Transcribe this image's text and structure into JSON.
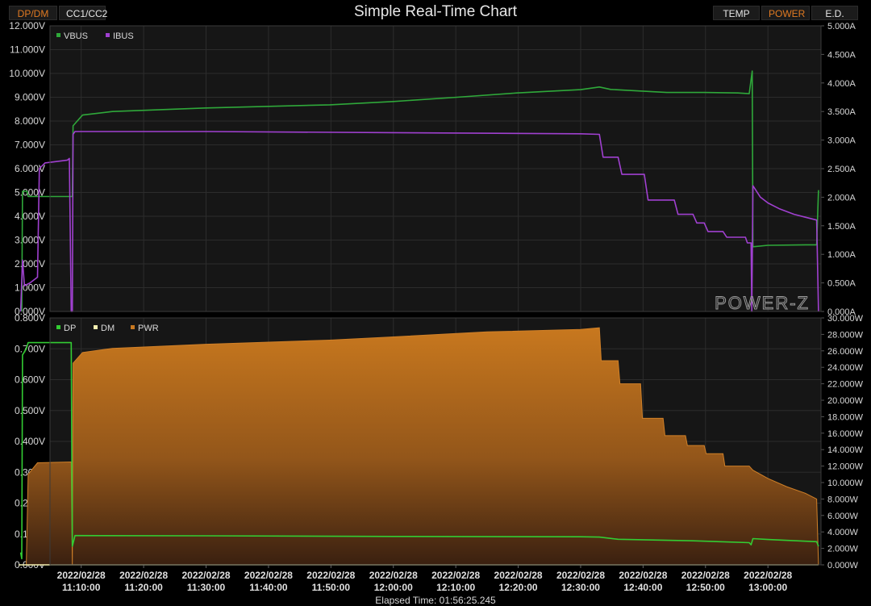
{
  "header": {
    "title": "Simple Real-Time Chart",
    "tabs_left": [
      {
        "label": "DP/DM",
        "active": true
      },
      {
        "label": "CC1/CC2",
        "active": false
      }
    ],
    "tabs_right": [
      {
        "label": "TEMP",
        "active": false
      },
      {
        "label": "POWER",
        "active": true
      },
      {
        "label": "E.D.",
        "active": false
      }
    ],
    "active_color": "#e07a22",
    "inactive_color": "#e6e6e6"
  },
  "watermark": "POWER-Z",
  "elapsed_time": "Elapsed Time: 01:56:25.245",
  "chart_data": [
    {
      "type": "line",
      "panel": "top",
      "x_ticks": [
        "2022/02/28 11:10:00",
        "2022/02/28 11:20:00",
        "2022/02/28 11:30:00",
        "2022/02/28 11:40:00",
        "2022/02/28 11:50:00",
        "2022/02/28 12:00:00",
        "2022/02/28 12:10:00",
        "2022/02/28 12:20:00",
        "2022/02/28 12:30:00",
        "2022/02/28 12:40:00",
        "2022/02/28 12:50:00",
        "2022/02/28 13:00:00"
      ],
      "y_left": {
        "ticks": [
          "12.000V",
          "11.000V",
          "10.000V",
          "9.000V",
          "8.000V",
          "7.000V",
          "6.000V",
          "5.000V",
          "4.000V",
          "3.000V",
          "2.000V",
          "1.000V",
          "0.000V"
        ],
        "range": [
          0,
          12
        ]
      },
      "y_right": {
        "ticks": [
          "5.000A",
          "4.500A",
          "4.000A",
          "3.500A",
          "3.000A",
          "2.500A",
          "2.000A",
          "1.500A",
          "1.000A",
          "0.500A",
          "0.000A"
        ],
        "range": [
          0,
          5
        ]
      },
      "legend": [
        {
          "name": "VBUS",
          "color": "#2fa83a"
        },
        {
          "name": "IBUS",
          "color": "#a040d0"
        }
      ],
      "series": [
        {
          "name": "VBUS",
          "axis": "left",
          "color": "#2fa83a",
          "points": [
            [
              11.008,
              0
            ],
            [
              11.01,
              5.05
            ],
            [
              11.022,
              5.05
            ],
            [
              11.025,
              4.83
            ],
            [
              11.143,
              4.83
            ],
            [
              11.145,
              7.8
            ],
            [
              11.17,
              8.25
            ],
            [
              11.25,
              8.4
            ],
            [
              11.5,
              8.55
            ],
            [
              11.83,
              8.68
            ],
            [
              12.0,
              8.82
            ],
            [
              12.17,
              9.0
            ],
            [
              12.33,
              9.18
            ],
            [
              12.5,
              9.32
            ],
            [
              12.55,
              9.43
            ],
            [
              12.58,
              9.33
            ],
            [
              12.67,
              9.25
            ],
            [
              12.73,
              9.2
            ],
            [
              12.83,
              9.2
            ],
            [
              12.92,
              9.18
            ],
            [
              12.95,
              9.15
            ],
            [
              12.958,
              10.1
            ],
            [
              12.96,
              2.72
            ],
            [
              13.0,
              2.78
            ],
            [
              13.1,
              2.8
            ],
            [
              13.13,
              2.8
            ],
            [
              13.135,
              5.1
            ]
          ]
        },
        {
          "name": "IBUS",
          "axis": "right",
          "color": "#a040d0",
          "points": [
            [
              11.005,
              0
            ],
            [
              11.01,
              0.9
            ],
            [
              11.015,
              0.45
            ],
            [
              11.03,
              0.5
            ],
            [
              11.05,
              0.6
            ],
            [
              11.055,
              2.5
            ],
            [
              11.07,
              2.6
            ],
            [
              11.13,
              2.65
            ],
            [
              11.135,
              2.68
            ],
            [
              11.14,
              0
            ],
            [
              11.143,
              0
            ],
            [
              11.145,
              3.1
            ],
            [
              11.15,
              3.15
            ],
            [
              11.5,
              3.15
            ],
            [
              12.0,
              3.13
            ],
            [
              12.5,
              3.11
            ],
            [
              12.55,
              3.1
            ],
            [
              12.56,
              2.7
            ],
            [
              12.6,
              2.7
            ],
            [
              12.61,
              2.4
            ],
            [
              12.67,
              2.4
            ],
            [
              12.68,
              1.95
            ],
            [
              12.75,
              1.95
            ],
            [
              12.76,
              1.7
            ],
            [
              12.8,
              1.7
            ],
            [
              12.81,
              1.55
            ],
            [
              12.83,
              1.55
            ],
            [
              12.84,
              1.4
            ],
            [
              12.88,
              1.4
            ],
            [
              12.89,
              1.3
            ],
            [
              12.94,
              1.3
            ],
            [
              12.945,
              1.2
            ],
            [
              12.955,
              1.2
            ],
            [
              12.957,
              0
            ],
            [
              12.96,
              2.2
            ],
            [
              12.98,
              2.0
            ],
            [
              13.0,
              1.9
            ],
            [
              13.03,
              1.8
            ],
            [
              13.07,
              1.7
            ],
            [
              13.1,
              1.65
            ],
            [
              13.13,
              1.6
            ],
            [
              13.135,
              0
            ]
          ]
        }
      ]
    },
    {
      "type": "area",
      "panel": "bottom",
      "x_ticks": [
        "2022/02/28 11:10:00",
        "2022/02/28 11:20:00",
        "2022/02/28 11:30:00",
        "2022/02/28 11:40:00",
        "2022/02/28 11:50:00",
        "2022/02/28 12:00:00",
        "2022/02/28 12:10:00",
        "2022/02/28 12:20:00",
        "2022/02/28 12:30:00",
        "2022/02/28 12:40:00",
        "2022/02/28 12:50:00",
        "2022/02/28 13:00:00"
      ],
      "y_left": {
        "ticks": [
          "0.800V",
          "0.700V",
          "0.600V",
          "0.500V",
          "0.400V",
          "0.300V",
          "0.200V",
          "0.100V",
          "0.000V"
        ],
        "range": [
          0,
          0.8
        ]
      },
      "y_right": {
        "ticks": [
          "30.000W",
          "28.000W",
          "26.000W",
          "24.000W",
          "22.000W",
          "20.000W",
          "18.000W",
          "16.000W",
          "14.000W",
          "12.000W",
          "10.000W",
          "8.000W",
          "6.000W",
          "4.000W",
          "2.000W",
          "0.000W"
        ],
        "range": [
          0,
          30
        ]
      },
      "legend": [
        {
          "name": "DP",
          "color": "#33cc33"
        },
        {
          "name": "DM",
          "color": "#f4efb0"
        },
        {
          "name": "PWR",
          "color": "#c87820"
        }
      ],
      "series": [
        {
          "name": "PWR",
          "axis": "right",
          "color": "#c87820",
          "points": [
            [
              11.02,
              0
            ],
            [
              11.025,
              11.0
            ],
            [
              11.05,
              12.4
            ],
            [
              11.14,
              12.5
            ],
            [
              11.143,
              0
            ],
            [
              11.145,
              24.5
            ],
            [
              11.17,
              25.8
            ],
            [
              11.25,
              26.3
            ],
            [
              11.5,
              26.8
            ],
            [
              11.83,
              27.3
            ],
            [
              12.0,
              27.7
            ],
            [
              12.25,
              28.3
            ],
            [
              12.5,
              28.6
            ],
            [
              12.55,
              28.8
            ],
            [
              12.555,
              24.8
            ],
            [
              12.6,
              24.8
            ],
            [
              12.605,
              22.0
            ],
            [
              12.66,
              22.0
            ],
            [
              12.665,
              17.8
            ],
            [
              12.72,
              17.8
            ],
            [
              12.725,
              15.7
            ],
            [
              12.78,
              15.7
            ],
            [
              12.785,
              14.5
            ],
            [
              12.83,
              14.5
            ],
            [
              12.835,
              13.5
            ],
            [
              12.88,
              13.5
            ],
            [
              12.885,
              12.0
            ],
            [
              12.95,
              12.0
            ],
            [
              12.96,
              11.5
            ],
            [
              13.0,
              10.5
            ],
            [
              13.05,
              9.5
            ],
            [
              13.1,
              8.7
            ],
            [
              13.13,
              8.0
            ],
            [
              13.135,
              0
            ]
          ]
        },
        {
          "name": "DP",
          "axis": "left",
          "color": "#33cc33",
          "points": [
            [
              11.005,
              0.04
            ],
            [
              11.008,
              0.02
            ],
            [
              11.01,
              0.68
            ],
            [
              11.02,
              0.7
            ],
            [
              11.025,
              0.72
            ],
            [
              11.14,
              0.72
            ],
            [
              11.143,
              0.06
            ],
            [
              11.15,
              0.095
            ],
            [
              11.5,
              0.094
            ],
            [
              12.0,
              0.092
            ],
            [
              12.5,
              0.091
            ],
            [
              12.55,
              0.09
            ],
            [
              12.6,
              0.083
            ],
            [
              12.8,
              0.078
            ],
            [
              12.95,
              0.072
            ],
            [
              12.955,
              0.065
            ],
            [
              12.96,
              0.085
            ],
            [
              13.0,
              0.082
            ],
            [
              13.13,
              0.075
            ],
            [
              13.135,
              0.06
            ]
          ]
        },
        {
          "name": "DM",
          "axis": "left",
          "color": "#f4efb0",
          "points": [
            [
              11.0,
              0
            ],
            [
              13.135,
              0
            ]
          ]
        }
      ]
    }
  ]
}
